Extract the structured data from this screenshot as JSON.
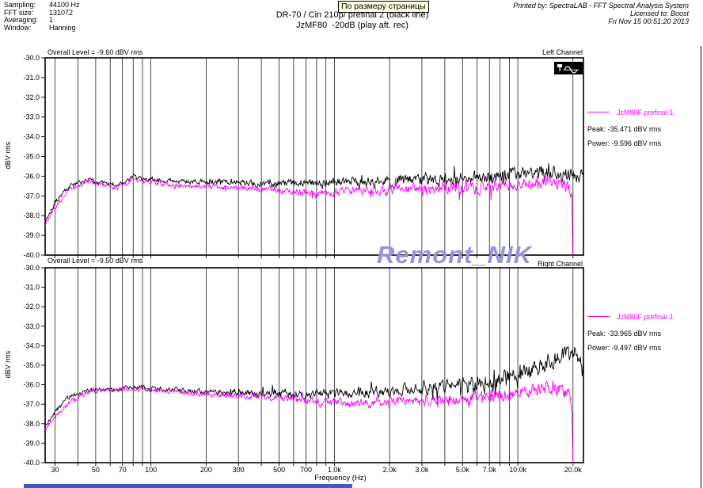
{
  "header": {
    "info_rows": [
      {
        "label": "Sampling:",
        "value": "44100 Hz"
      },
      {
        "label": "FFT size:",
        "value": "131072"
      },
      {
        "label": "Averaging:",
        "value": "1"
      },
      {
        "label": "Window:",
        "value": "Hanning"
      }
    ],
    "zoom_tooltip": "По размеру страницы",
    "title_line1": "DR-70 / Cin 210p/ prefinal 2 (black line)",
    "title_line2": "JzMF80  -20dB (play aft. rec)",
    "printed_by": "Printed by: SpectraLAB - FFT Spectral Analysis System",
    "licensed_to": "Licensed to: Boost",
    "print_datetime": "Fri Nov 15 00:51:20 2013"
  },
  "watermark_text": "Remont_NIK",
  "frequency_axis_label": "Frequency (Hz)",
  "colors": {
    "trace_black": "#000000",
    "trace_magenta": "#ff00ff",
    "watermark": "#9693dd",
    "tooltip_bg": "#ffffe1",
    "bottom_bar": "#3d5acd"
  },
  "icons": {
    "left_channel_overlay": "pin-and-sine-wave-icon"
  },
  "chart_data": [
    {
      "type": "line",
      "channel_label": "Left Channel",
      "overall_level": "Overall Level = -9.60 dBV rms",
      "ylabel": "dBV rms",
      "xlabel": "Frequency (Hz)",
      "x_scale": "log",
      "grid": "vertical-log-lines-only",
      "x_range_hz": [
        26.5,
        22800
      ],
      "y_range_dbv": [
        -40,
        -30
      ],
      "y_tick_labels": [
        "-30.0",
        "-31.0",
        "-32.0",
        "-33.0",
        "-34.0",
        "-35.0",
        "-36.0",
        "-37.0",
        "-38.0",
        "-39.0",
        "-40.0"
      ],
      "x_ticks": [
        {
          "hz": 30,
          "label": "30"
        },
        {
          "hz": 50,
          "label": "50"
        },
        {
          "hz": 70,
          "label": "70"
        },
        {
          "hz": 100,
          "label": "100"
        },
        {
          "hz": 200,
          "label": "200"
        },
        {
          "hz": 300,
          "label": "300"
        },
        {
          "hz": 500,
          "label": "500"
        },
        {
          "hz": 700,
          "label": "700"
        },
        {
          "hz": 1000,
          "label": "1.0k"
        },
        {
          "hz": 2000,
          "label": "2.0k"
        },
        {
          "hz": 3000,
          "label": "3.0k"
        },
        {
          "hz": 5000,
          "label": "5.0k"
        },
        {
          "hz": 7000,
          "label": "7.0k"
        },
        {
          "hz": 10000,
          "label": "10.0k"
        },
        {
          "hz": 20000,
          "label": "20.0k"
        }
      ],
      "legend": {
        "series_label": "JzM80F prefinal 1",
        "peak": "Peak: -35.471 dBV rms",
        "power": "Power: -9.596 dBV rms"
      },
      "series": [
        {
          "name": "DR-70 / Cin 210p/ prefinal 2 (black line)",
          "color": "#000000",
          "seed": 101,
          "max_hz": 22800,
          "noise": [
            0.12,
            0.42
          ],
          "anchors": [
            [
              26.5,
              -38.3
            ],
            [
              30,
              -37.3
            ],
            [
              36,
              -36.5
            ],
            [
              45,
              -36.2
            ],
            [
              55,
              -36.35
            ],
            [
              65,
              -36.45
            ],
            [
              80,
              -36.05
            ],
            [
              100,
              -36.15
            ],
            [
              150,
              -36.25
            ],
            [
              250,
              -36.3
            ],
            [
              400,
              -36.4
            ],
            [
              600,
              -36.35
            ],
            [
              1000,
              -36.3
            ],
            [
              1600,
              -36.3
            ],
            [
              2500,
              -36.2
            ],
            [
              4000,
              -36.15
            ],
            [
              6300,
              -36.05
            ],
            [
              10000,
              -35.9
            ],
            [
              14000,
              -35.8
            ],
            [
              18000,
              -35.9
            ],
            [
              20000,
              -35.9
            ],
            [
              22800,
              -36.1
            ]
          ]
        },
        {
          "name": "JzM80F prefinal 1",
          "color": "#ff00ff",
          "seed": 202,
          "max_hz": 20050,
          "noise": [
            0.11,
            0.38
          ],
          "anchors": [
            [
              26.5,
              -38.4
            ],
            [
              30,
              -37.6
            ],
            [
              36,
              -36.7
            ],
            [
              45,
              -36.25
            ],
            [
              55,
              -36.45
            ],
            [
              65,
              -36.6
            ],
            [
              80,
              -36.15
            ],
            [
              100,
              -36.3
            ],
            [
              150,
              -36.5
            ],
            [
              250,
              -36.55
            ],
            [
              400,
              -36.65
            ],
            [
              600,
              -36.8
            ],
            [
              800,
              -36.9
            ],
            [
              1200,
              -36.7
            ],
            [
              2000,
              -36.7
            ],
            [
              3200,
              -36.65
            ],
            [
              5000,
              -36.6
            ],
            [
              8000,
              -36.5
            ],
            [
              12000,
              -36.35
            ],
            [
              15000,
              -36.25
            ],
            [
              17500,
              -36.35
            ],
            [
              19000,
              -36.55
            ],
            [
              19800,
              -37.0
            ],
            [
              20050,
              -42
            ]
          ]
        }
      ]
    },
    {
      "type": "line",
      "channel_label": "Right Channel",
      "overall_level": "Overall Level = -9.50 dBV rms",
      "ylabel": "dBV rms",
      "xlabel": "Frequency (Hz)",
      "x_scale": "log",
      "grid": "vertical-log-lines-only",
      "x_range_hz": [
        26.5,
        22800
      ],
      "y_range_dbv": [
        -40,
        -30
      ],
      "y_tick_labels": [
        "-30.0",
        "-31.0",
        "-32.0",
        "-33.0",
        "-34.0",
        "-35.0",
        "-36.0",
        "-37.0",
        "-38.0",
        "-39.0",
        "-40.0"
      ],
      "x_ticks": [
        {
          "hz": 30,
          "label": "30"
        },
        {
          "hz": 50,
          "label": "50"
        },
        {
          "hz": 70,
          "label": "70"
        },
        {
          "hz": 100,
          "label": "100"
        },
        {
          "hz": 200,
          "label": "200"
        },
        {
          "hz": 300,
          "label": "300"
        },
        {
          "hz": 500,
          "label": "500"
        },
        {
          "hz": 700,
          "label": "700"
        },
        {
          "hz": 1000,
          "label": "1.0k"
        },
        {
          "hz": 2000,
          "label": "2.0k"
        },
        {
          "hz": 3000,
          "label": "3.0k"
        },
        {
          "hz": 5000,
          "label": "5.0k"
        },
        {
          "hz": 7000,
          "label": "7.0k"
        },
        {
          "hz": 10000,
          "label": "10.0k"
        },
        {
          "hz": 20000,
          "label": "20.0k"
        }
      ],
      "legend": {
        "series_label": "JzM80F prefinal 1",
        "peak": "Peak: -33.965 dBV rms",
        "power": "Power: -9.497 dBV rms"
      },
      "series": [
        {
          "name": "DR-70 / Cin 210p/ prefinal 2 (black line)",
          "color": "#000000",
          "seed": 303,
          "max_hz": 22800,
          "noise": [
            0.12,
            0.45
          ],
          "anchors": [
            [
              26.5,
              -38.1
            ],
            [
              30,
              -37.4
            ],
            [
              36,
              -36.6
            ],
            [
              45,
              -36.3
            ],
            [
              60,
              -36.3
            ],
            [
              80,
              -36.1
            ],
            [
              100,
              -36.2
            ],
            [
              150,
              -36.3
            ],
            [
              250,
              -36.4
            ],
            [
              400,
              -36.45
            ],
            [
              600,
              -36.5
            ],
            [
              1000,
              -36.45
            ],
            [
              1600,
              -36.4
            ],
            [
              2500,
              -36.25
            ],
            [
              4000,
              -36.1
            ],
            [
              6300,
              -35.9
            ],
            [
              10000,
              -35.5
            ],
            [
              13000,
              -35.1
            ],
            [
              16000,
              -34.7
            ],
            [
              18500,
              -34.4
            ],
            [
              20000,
              -34.35
            ],
            [
              21500,
              -34.5
            ],
            [
              22800,
              -34.7
            ]
          ]
        },
        {
          "name": "JzM80F prefinal 1",
          "color": "#ff00ff",
          "seed": 404,
          "max_hz": 20050,
          "noise": [
            0.11,
            0.38
          ],
          "anchors": [
            [
              26.5,
              -38.3
            ],
            [
              30,
              -37.7
            ],
            [
              36,
              -36.9
            ],
            [
              45,
              -36.4
            ],
            [
              60,
              -36.25
            ],
            [
              80,
              -36.25
            ],
            [
              100,
              -36.3
            ],
            [
              150,
              -36.4
            ],
            [
              250,
              -36.55
            ],
            [
              400,
              -36.6
            ],
            [
              600,
              -36.75
            ],
            [
              800,
              -36.85
            ],
            [
              1200,
              -37.0
            ],
            [
              2000,
              -36.85
            ],
            [
              3200,
              -36.8
            ],
            [
              5000,
              -36.7
            ],
            [
              8000,
              -36.55
            ],
            [
              12000,
              -36.35
            ],
            [
              15000,
              -36.2
            ],
            [
              17500,
              -36.35
            ],
            [
              19000,
              -36.6
            ],
            [
              19800,
              -37.3
            ],
            [
              20050,
              -42
            ]
          ]
        }
      ]
    }
  ]
}
